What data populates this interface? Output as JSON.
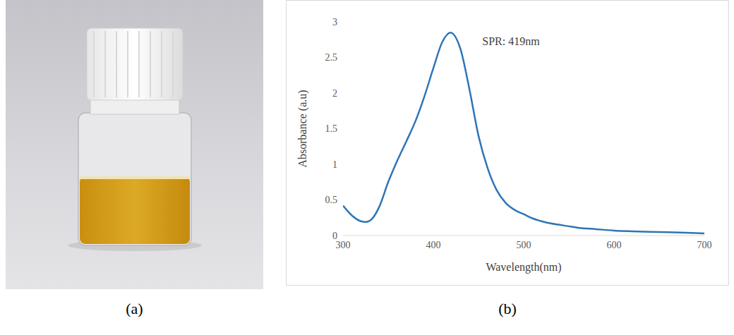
{
  "panel_labels": [
    "(a)",
    "(b)"
  ],
  "chart_data": {
    "type": "line",
    "x": [
      300,
      310,
      320,
      325,
      330,
      340,
      350,
      360,
      370,
      380,
      390,
      400,
      410,
      419,
      430,
      440,
      450,
      460,
      470,
      480,
      490,
      500,
      510,
      520,
      530,
      540,
      550,
      560,
      580,
      600,
      620,
      650,
      680,
      700
    ],
    "values": [
      0.42,
      0.28,
      0.2,
      0.19,
      0.21,
      0.4,
      0.75,
      1.05,
      1.32,
      1.6,
      1.95,
      2.35,
      2.72,
      2.85,
      2.62,
      2.05,
      1.4,
      0.95,
      0.64,
      0.46,
      0.36,
      0.3,
      0.24,
      0.2,
      0.17,
      0.15,
      0.13,
      0.11,
      0.09,
      0.07,
      0.06,
      0.05,
      0.04,
      0.03
    ],
    "color": "#2e75b6",
    "xlabel": "Wavelength(nm)",
    "ylabel": "Absorbance (a.u)",
    "xlim": [
      300,
      700
    ],
    "xticks": [
      300,
      400,
      500,
      600,
      700
    ],
    "ylim": [
      0,
      3
    ],
    "yticks": [
      0,
      0.5,
      1,
      1.5,
      2,
      2.5,
      3
    ],
    "grid": false,
    "annotation": "SPR: 419nm"
  }
}
